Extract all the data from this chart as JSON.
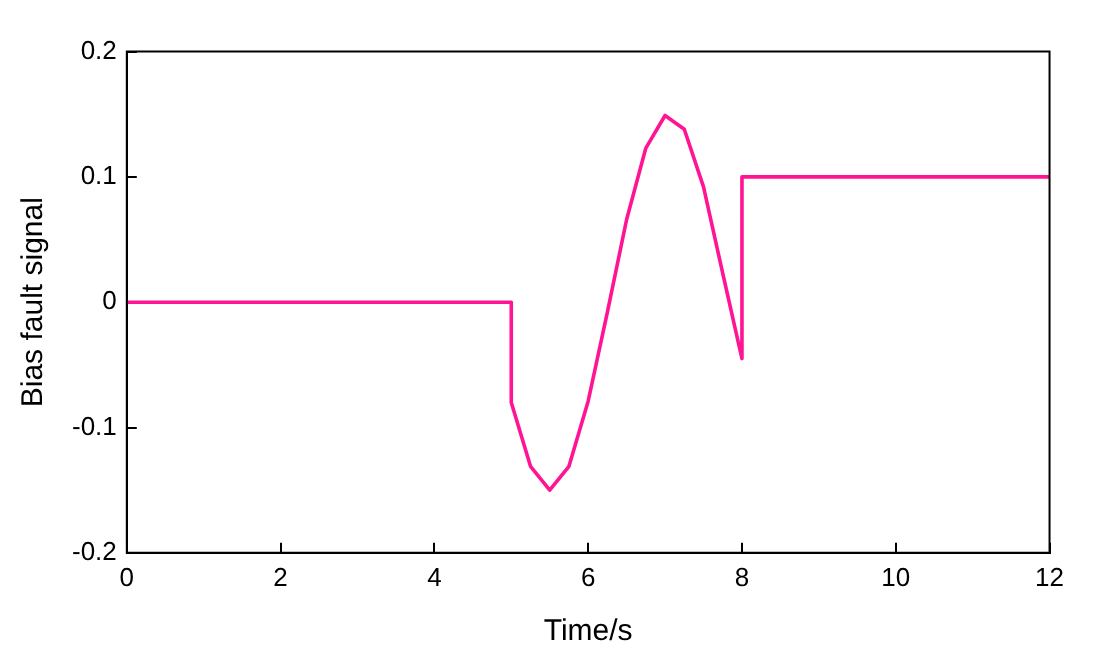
{
  "chart_data": {
    "type": "line",
    "xlabel": "Time/s",
    "ylabel": "Bias fault signal",
    "x": [
      0,
      5,
      5,
      5.25,
      5.5,
      5.75,
      6,
      6.25,
      6.5,
      6.75,
      7,
      7.25,
      7.5,
      7.75,
      8,
      8,
      12
    ],
    "series": [
      {
        "color": "#ff1493",
        "values": [
          0,
          0,
          -0.08,
          -0.131,
          -0.15,
          -0.131,
          -0.079,
          -0.008,
          0.066,
          0.123,
          0.149,
          0.138,
          0.092,
          0.023,
          -0.045,
          0.1,
          0.1
        ]
      }
    ],
    "xlim": [
      0,
      12
    ],
    "xticks": [
      0,
      2,
      4,
      6,
      8,
      10,
      12
    ],
    "ylim": [
      -0.2,
      0.2
    ],
    "yticks": [
      -0.2,
      -0.1,
      0,
      0.1,
      0.2
    ],
    "grid": false,
    "legend": false,
    "marker": "none",
    "line_style": "solid"
  }
}
